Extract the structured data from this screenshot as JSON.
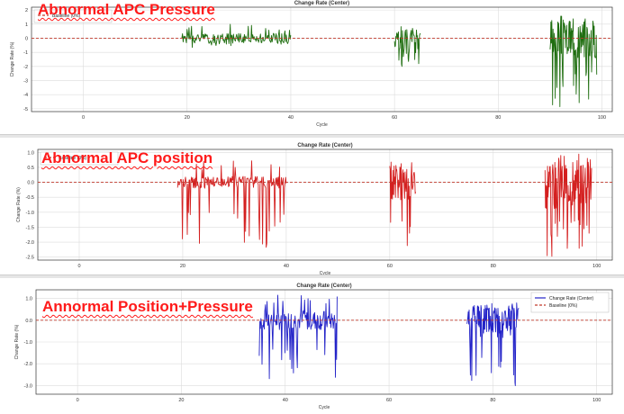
{
  "overlays": [
    "Abnormal APC Pressure",
    "Abnormal APC position",
    "Annormal Position+Pressure"
  ],
  "colors": {
    "baseline": "#c0392b",
    "grid": "#dcdcdc"
  },
  "chart_data": [
    {
      "type": "line",
      "title": "Change Rate (Center)",
      "xlabel": "Cycle",
      "ylabel": "Change Rate (%)",
      "xlim": [
        -10,
        102
      ],
      "ylim": [
        -5.2,
        2.2
      ],
      "xticks": [
        0,
        20,
        40,
        60,
        80,
        100
      ],
      "yticks": [
        2,
        1,
        0,
        -1,
        -2,
        -3,
        -4,
        -5
      ],
      "grid": true,
      "legend_position": "top-left",
      "series": [
        {
          "label": "",
          "color": "#1f6e10",
          "segments": [
            {
              "x0": 19,
              "x1": 40,
              "n": 170,
              "amp": 0.35,
              "dip": -0.7,
              "spike": 1.0,
              "seed": 1
            },
            {
              "x0": 60,
              "x1": 65,
              "n": 60,
              "amp": 0.9,
              "dip": -2.2,
              "spike": 0.3,
              "seed": 2
            },
            {
              "x0": 90,
              "x1": 99,
              "n": 110,
              "amp": 1.4,
              "dip": -5.0,
              "spike": 1.6,
              "seed": 3
            }
          ]
        },
        {
          "label": "Baseline (0%)",
          "color": "#c0392b",
          "baseline": 0
        }
      ]
    },
    {
      "type": "line",
      "title": "Change Rate (Center)",
      "xlabel": "Cycle",
      "ylabel": "Change Rate (%)",
      "xlim": [
        -8,
        103
      ],
      "ylim": [
        -2.6,
        1.1
      ],
      "xticks": [
        0,
        20,
        40,
        60,
        80,
        100
      ],
      "yticks": [
        1.0,
        0.5,
        0.0,
        -0.5,
        -1.0,
        -1.5,
        -2.0,
        -2.5
      ],
      "grid": true,
      "legend_position": "top-left",
      "series": [
        {
          "label": "",
          "color": "#d42020",
          "segments": [
            {
              "x0": 19,
              "x1": 40,
              "n": 180,
              "amp": 0.2,
              "dip": -2.2,
              "spike": 0.75,
              "seed": 4
            },
            {
              "x0": 60,
              "x1": 65,
              "n": 60,
              "amp": 0.7,
              "dip": -2.5,
              "spike": 0.2,
              "seed": 5
            },
            {
              "x0": 90,
              "x1": 99,
              "n": 110,
              "amp": 0.9,
              "dip": -2.5,
              "spike": 0.95,
              "seed": 6
            }
          ]
        },
        {
          "label": "Baseline (0%)",
          "color": "#c0392b",
          "baseline": 0
        }
      ]
    },
    {
      "type": "line",
      "title": "Change Rate (Center)",
      "xlabel": "Cycle",
      "ylabel": "Change Rate (%)",
      "xlim": [
        -8,
        103
      ],
      "ylim": [
        -3.4,
        1.4
      ],
      "xticks": [
        0,
        20,
        40,
        60,
        80,
        100
      ],
      "yticks": [
        1,
        0,
        -1,
        -2,
        -3
      ],
      "grid": true,
      "legend_position": "top-right",
      "series": [
        {
          "label": "Change Rate (Center)",
          "color": "#2323c8",
          "segments": [
            {
              "x0": 35,
              "x1": 50,
              "n": 140,
              "amp": 0.45,
              "dip": -2.8,
              "spike": 1.2,
              "seed": 7
            },
            {
              "x0": 75,
              "x1": 85,
              "n": 120,
              "amp": 0.8,
              "dip": -3.1,
              "spike": 0.6,
              "seed": 8
            }
          ]
        },
        {
          "label": "Baseline (0%)",
          "color": "#c0392b",
          "baseline": 0
        }
      ]
    }
  ]
}
